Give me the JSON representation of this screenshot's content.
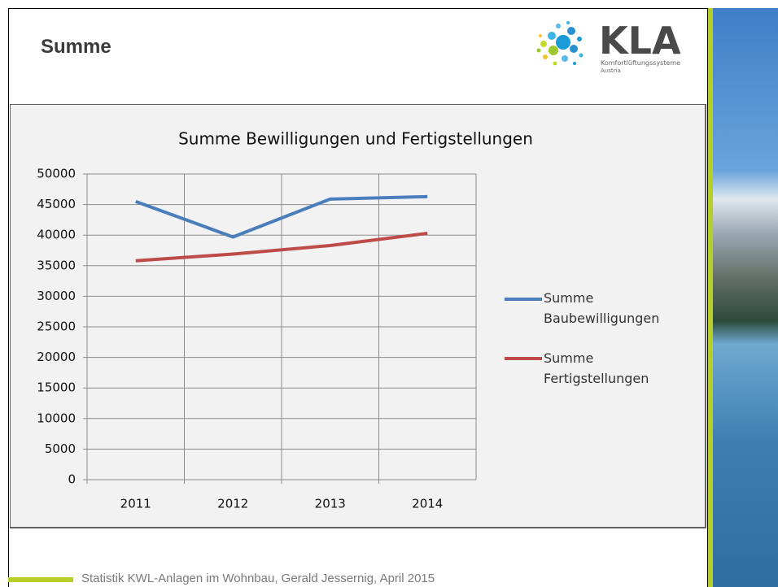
{
  "slide": {
    "title": "Summe",
    "logo": {
      "name": "KLA",
      "line1": "Komfortlüftungssysteme",
      "line2": "Austria"
    },
    "footer": "Statistik KWL-Anlagen im Wohnbau, Gerald Jessernig, April 2015"
  },
  "chart_data": {
    "type": "line",
    "title": "Summe Bewilligungen und Fertigstellungen",
    "categories": [
      "2011",
      "2012",
      "2013",
      "2014"
    ],
    "series": [
      {
        "name": "Summe Baubewilligungen",
        "color": "#4a7ebb",
        "values": [
          45500,
          39700,
          45900,
          46300
        ]
      },
      {
        "name": "Summe Fertigstellungen",
        "color": "#be4b48",
        "values": [
          35800,
          36900,
          38300,
          40300
        ]
      }
    ],
    "ylim": [
      0,
      50000
    ],
    "yticks": [
      0,
      5000,
      10000,
      15000,
      20000,
      25000,
      30000,
      35000,
      40000,
      45000,
      50000
    ],
    "grid": true,
    "legend": "right"
  }
}
